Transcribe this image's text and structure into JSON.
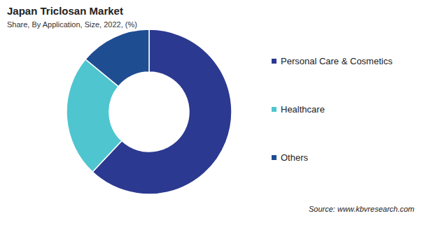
{
  "chart_data": {
    "type": "pie",
    "title": "Japan Triclosan Market",
    "subtitle": "Share, By Application, Size, 2022, (%)",
    "categories": [
      "Personal Care & Cosmetics",
      "Healthcare",
      "Others"
    ],
    "values": [
      62,
      24,
      14
    ],
    "colors": [
      "#2b3990",
      "#4fc5cf",
      "#1f4d91"
    ],
    "legend": "right",
    "source": "Source: www.kbvresearch.com"
  }
}
